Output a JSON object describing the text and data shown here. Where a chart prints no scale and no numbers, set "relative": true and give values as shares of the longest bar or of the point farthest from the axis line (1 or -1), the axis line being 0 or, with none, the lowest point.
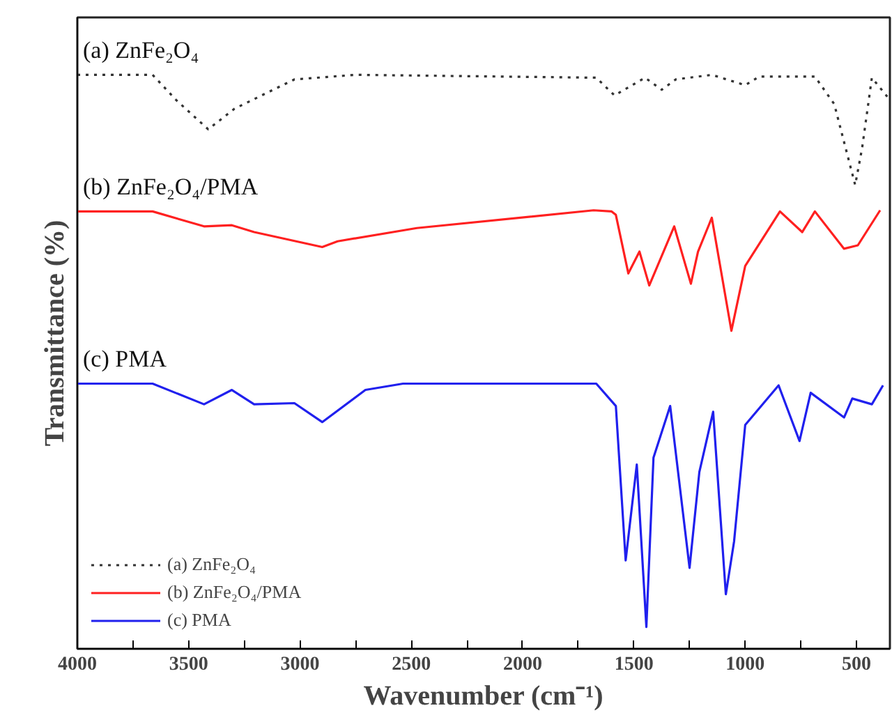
{
  "chart_data": {
    "type": "line",
    "relative": true,
    "xlabel": "Wavenumber (cm⁻¹)",
    "ylabel": "Transmittance (%)",
    "xlim": [
      4000,
      350
    ],
    "xticks": [
      4000,
      {
        "value": 3750,
        "label": null
      },
      3500,
      {
        "value": 3250,
        "label": null
      },
      3000,
      {
        "value": 2750,
        "label": null
      },
      2500,
      {
        "value": 2250,
        "label": null
      },
      2000,
      {
        "value": 1750,
        "label": null
      },
      1500,
      {
        "value": 1250,
        "label": null
      },
      1000,
      {
        "value": 750,
        "label": null
      },
      500
    ],
    "grid": false,
    "legend": "bottom left",
    "marker": "none",
    "series": [
      {
        "name": "(a) ZnFe₂O₄",
        "color": "#333333",
        "line_style": "dotted",
        "x": [
          4000,
          3662,
          3556,
          3412,
          3294,
          3025,
          2750,
          1669,
          1587,
          1450,
          1375,
          1312,
          1150,
          1000,
          937,
          687,
          600,
          506,
          475,
          431,
          362
        ],
        "values": [
          1.0,
          1.0,
          0.956,
          0.905,
          0.941,
          0.992,
          1.0,
          0.995,
          0.964,
          0.995,
          0.974,
          0.992,
          1.0,
          0.982,
          0.997,
          0.997,
          0.949,
          0.808,
          0.872,
          0.995,
          0.962
        ]
      },
      {
        "name": "(b) ZnFe₂O₄/PMA",
        "color": "#ff2020",
        "line_style": "solid",
        "x": [
          4000,
          3662,
          3431,
          3306,
          3206,
          2900,
          2831,
          2475,
          1681,
          1600,
          1581,
          1525,
          1475,
          1431,
          1319,
          1244,
          1212,
          1150,
          1062,
          1000,
          844,
          744,
          687,
          556,
          494,
          394
        ],
        "values": [
          0.762,
          0.762,
          0.736,
          0.738,
          0.726,
          0.7,
          0.71,
          0.733,
          0.764,
          0.762,
          0.756,
          0.654,
          0.692,
          0.633,
          0.736,
          0.636,
          0.692,
          0.751,
          0.554,
          0.667,
          0.762,
          0.726,
          0.762,
          0.697,
          0.703,
          0.764
        ]
      },
      {
        "name": "(c) PMA",
        "color": "#2020ee",
        "line_style": "solid",
        "x": [
          4000,
          3662,
          3431,
          3306,
          3206,
          3025,
          2900,
          2706,
          2537,
          1669,
          1581,
          1537,
          1487,
          1444,
          1412,
          1337,
          1250,
          1206,
          1144,
          1087,
          1050,
          1000,
          850,
          756,
          706,
          556,
          519,
          431,
          381
        ],
        "values": [
          0.462,
          0.462,
          0.426,
          0.451,
          0.426,
          0.428,
          0.395,
          0.451,
          0.462,
          0.462,
          0.423,
          0.154,
          0.321,
          0.038,
          0.333,
          0.423,
          0.141,
          0.308,
          0.413,
          0.095,
          0.187,
          0.39,
          0.459,
          0.362,
          0.446,
          0.403,
          0.436,
          0.426,
          0.459
        ]
      }
    ]
  }
}
